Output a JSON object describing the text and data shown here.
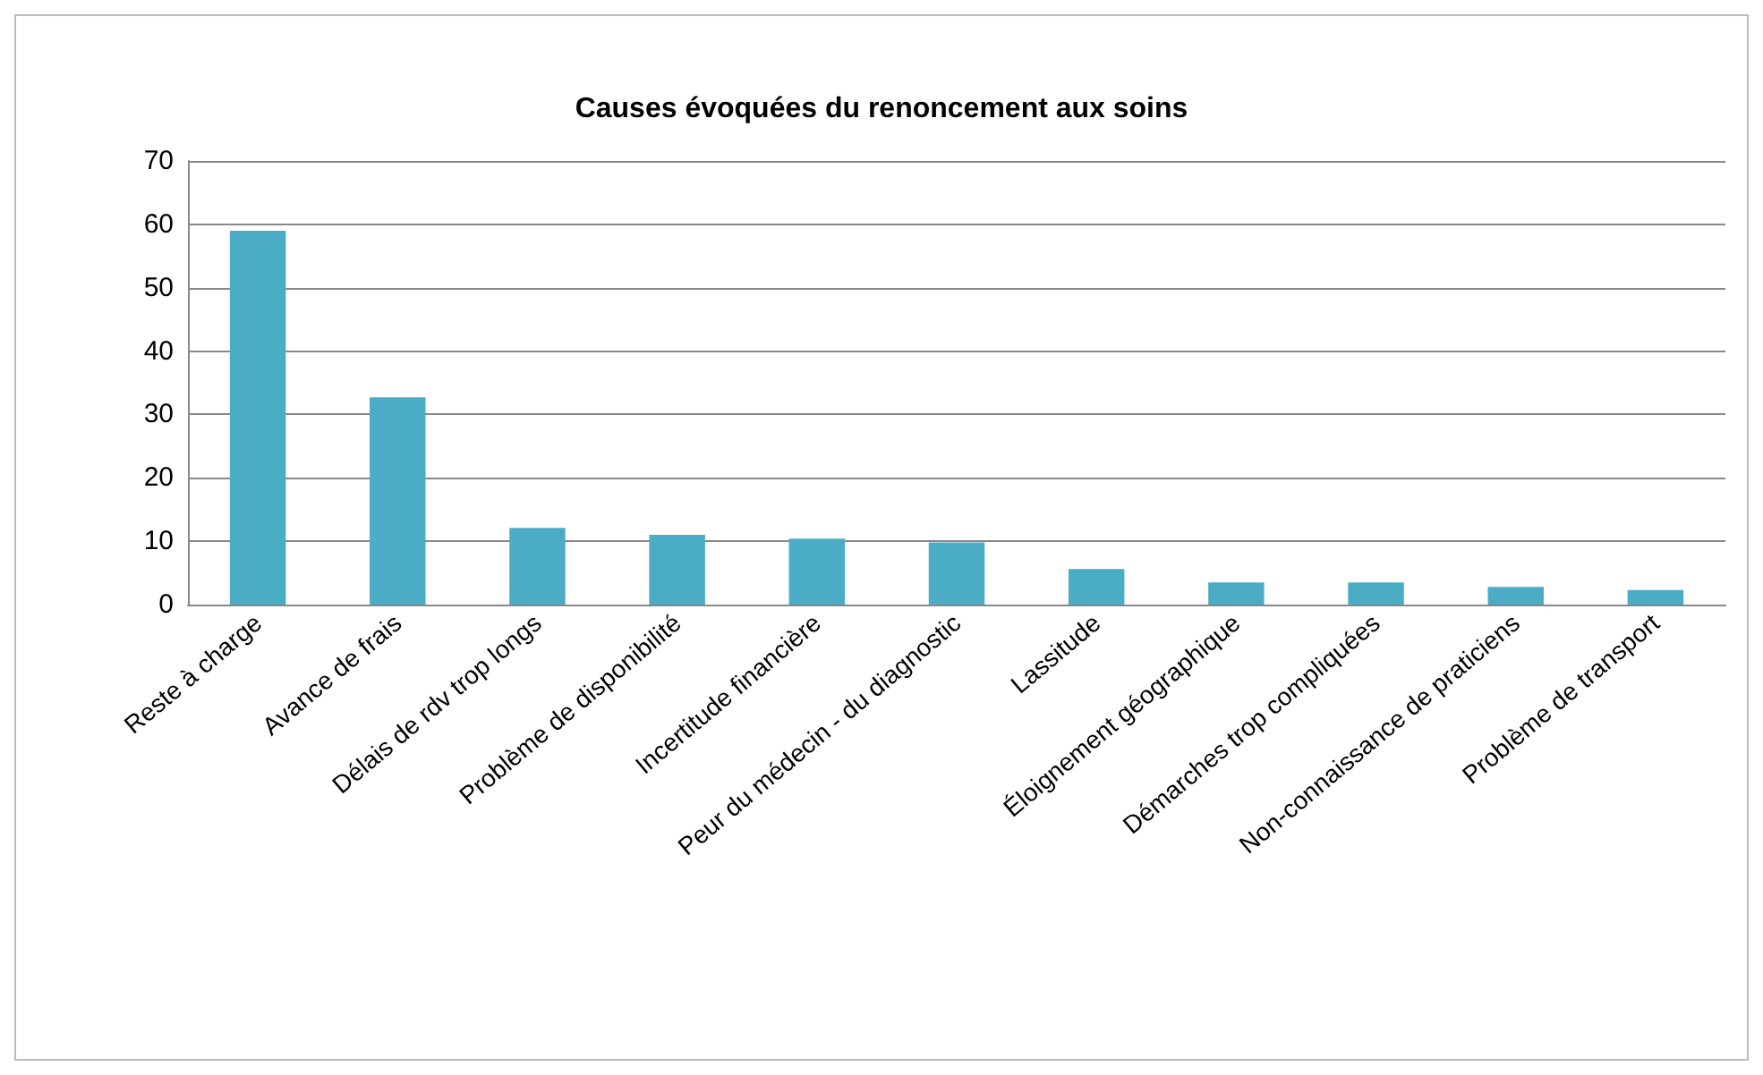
{
  "chart_data": {
    "type": "bar",
    "title": "Causes évoquées du renoncement aux soins",
    "categories": [
      "Reste à charge",
      "Avance de frais",
      "Délais de rdv trop longs",
      "Problème de disponibilité",
      "Incertitude financière",
      "Peur du médecin - du diagnostic",
      "Lassitude",
      "Éloignement géographique",
      "Démarches trop compliquées",
      "Non-connaissance de praticiens",
      "Problème de transport"
    ],
    "values": [
      59,
      32.7,
      12.1,
      11,
      10.4,
      9.8,
      5.6,
      3.5,
      3.5,
      2.8,
      2.3
    ],
    "color": "#4bacc6",
    "ylim": [
      0,
      70
    ],
    "yticks": [
      0,
      10,
      20,
      30,
      40,
      50,
      60,
      70
    ],
    "grid": "y"
  }
}
